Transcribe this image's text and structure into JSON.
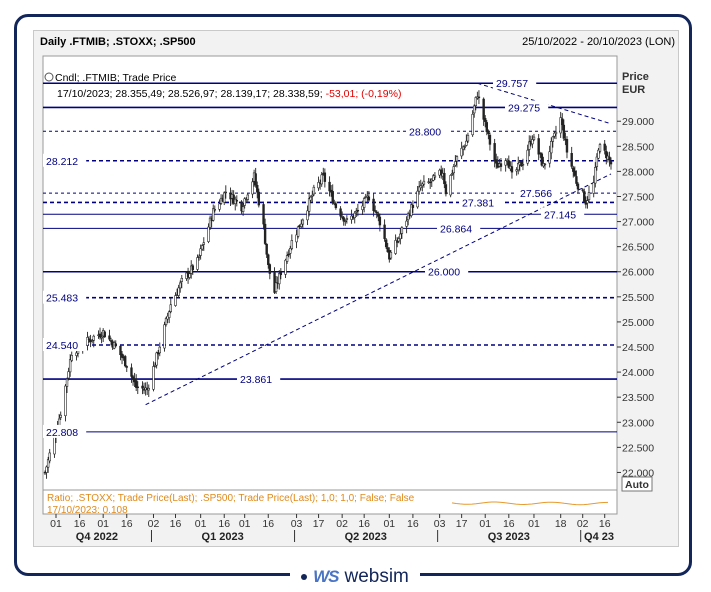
{
  "header": {
    "title": "Daily .FTMIB; .STOXX; .SP500",
    "range": "25/10/2022 - 20/10/2023 (LON)"
  },
  "legend": {
    "line1": "Cndl; .FTMIB; Trade Price",
    "line2_prefix": "17/10/2023; 28.355,49; 28.526,97; 28.139,17; 28.338,59; ",
    "line2_change": "-53,01; (-0,19%)"
  },
  "axis": {
    "price_label": "Price",
    "currency_label": "EUR",
    "auto_label": "Auto"
  },
  "ratio_panel": {
    "label": "Ratio; .STOXX; Trade Price(Last); .SP500; Trade Price(Last);  1,0; 1,0; False; False",
    "value_label": "17/10/2023; 0,108"
  },
  "branding": {
    "mark": "WS",
    "name": "websim"
  },
  "colors": {
    "accent": "#000080",
    "dark_navy": "#13265a",
    "down": "#ff0000",
    "ratio": "#e69a2e",
    "candle": "#222222"
  },
  "chart_data": {
    "type": "candlestick",
    "ylim": [
      21650,
      30300
    ],
    "y_ticks": [
      22000,
      22500,
      23000,
      23500,
      24000,
      24500,
      25000,
      25500,
      26000,
      26500,
      27000,
      27500,
      28000,
      28500,
      29000
    ],
    "y_tick_labels": [
      "22.000",
      "22.500",
      "23.000",
      "23.500",
      "24.000",
      "24.500",
      "25.000",
      "25.500",
      "26.000",
      "26.500",
      "27.000",
      "27.500",
      "28.000",
      "28.500",
      "29.000"
    ],
    "x_day_ticks": [
      {
        "date": "2022-11-01",
        "label": "01"
      },
      {
        "date": "2022-11-16",
        "label": "16"
      },
      {
        "date": "2022-12-01",
        "label": "01"
      },
      {
        "date": "2022-12-16",
        "label": "16"
      },
      {
        "date": "2023-01-02",
        "label": "02"
      },
      {
        "date": "2023-01-16",
        "label": "16"
      },
      {
        "date": "2023-02-01",
        "label": "01"
      },
      {
        "date": "2023-02-16",
        "label": "16"
      },
      {
        "date": "2023-03-01",
        "label": "01"
      },
      {
        "date": "2023-03-16",
        "label": "16"
      },
      {
        "date": "2023-04-03",
        "label": "03"
      },
      {
        "date": "2023-04-17",
        "label": "17"
      },
      {
        "date": "2023-05-02",
        "label": "02"
      },
      {
        "date": "2023-05-16",
        "label": "16"
      },
      {
        "date": "2023-06-01",
        "label": "01"
      },
      {
        "date": "2023-06-16",
        "label": "16"
      },
      {
        "date": "2023-07-03",
        "label": "03"
      },
      {
        "date": "2023-07-17",
        "label": "17"
      },
      {
        "date": "2023-08-01",
        "label": "01"
      },
      {
        "date": "2023-08-16",
        "label": "16"
      },
      {
        "date": "2023-09-01",
        "label": "01"
      },
      {
        "date": "2023-09-18",
        "label": "18"
      },
      {
        "date": "2023-10-02",
        "label": "02"
      },
      {
        "date": "2023-10-16",
        "label": "16"
      }
    ],
    "x_quarters": [
      {
        "label": "Q4 2022",
        "start": "2022-10-25",
        "end": "2022-12-30"
      },
      {
        "label": "Q1 2023",
        "start": "2023-01-02",
        "end": "2023-03-31"
      },
      {
        "label": "Q2 2023",
        "start": "2023-04-03",
        "end": "2023-06-30"
      },
      {
        "label": "Q3 2023",
        "start": "2023-07-03",
        "end": "2023-09-29"
      },
      {
        "label": "Q4 23",
        "start": "2023-10-02",
        "end": "2023-10-20"
      }
    ],
    "horizontal_levels": [
      {
        "value": 29757,
        "label": "29.757",
        "style": "solid",
        "label_pos": "mid-right"
      },
      {
        "value": 29275,
        "label": "29.275",
        "style": "solid",
        "label_pos": "mid-right"
      },
      {
        "value": 28800,
        "label": "28.800",
        "style": "dashed-thin",
        "label_pos": "mid-right"
      },
      {
        "value": 28212,
        "label": "28.212",
        "style": "dashed",
        "label_pos": "left"
      },
      {
        "value": 27566,
        "label": "27.566",
        "style": "dashed-thin",
        "label_pos": "mid-right"
      },
      {
        "value": 27381,
        "label": "27.381",
        "style": "dashed",
        "label_pos": "middle"
      },
      {
        "value": 27145,
        "label": "27.145",
        "style": "solid-thin",
        "label_pos": "right"
      },
      {
        "value": 26864,
        "label": "26.864",
        "style": "solid-thin",
        "label_pos": "middle"
      },
      {
        "value": 26000,
        "label": "26.000",
        "style": "solid",
        "label_pos": "middle"
      },
      {
        "value": 25483,
        "label": "25.483",
        "style": "dashed",
        "label_pos": "left"
      },
      {
        "value": 24540,
        "label": "24.540",
        "style": "dashed",
        "label_pos": "left"
      },
      {
        "value": 23861,
        "label": "23.861",
        "style": "solid",
        "label_pos": "left-mid"
      },
      {
        "value": 22808,
        "label": "22.808",
        "style": "solid-thin",
        "label_pos": "left"
      }
    ],
    "trendlines": [
      {
        "from": {
          "date": "2022-12-28",
          "value": 23350
        },
        "to": {
          "date": "2023-10-20",
          "value": 27950
        },
        "style": "dashed"
      },
      {
        "from": {
          "date": "2023-07-27",
          "value": 29757
        },
        "to": {
          "date": "2023-10-20",
          "value": 28950
        },
        "style": "dashed"
      }
    ],
    "anchors": [
      {
        "date": "2022-10-25",
        "close": 22000,
        "lo": 21800,
        "hi": 22150
      },
      {
        "date": "2022-11-04",
        "close": 23200,
        "lo": 22600,
        "hi": 23400
      },
      {
        "date": "2022-11-11",
        "close": 24400,
        "lo": 24000,
        "hi": 24600
      },
      {
        "date": "2022-11-25",
        "close": 24700,
        "lo": 24400,
        "hi": 24800
      },
      {
        "date": "2022-12-01",
        "close": 24800,
        "lo": 24500,
        "hi": 24950
      },
      {
        "date": "2022-12-09",
        "close": 24500,
        "lo": 24300,
        "hi": 24700
      },
      {
        "date": "2022-12-16",
        "close": 24150,
        "lo": 23800,
        "hi": 24400
      },
      {
        "date": "2022-12-22",
        "close": 23700,
        "lo": 23500,
        "hi": 23900
      },
      {
        "date": "2022-12-29",
        "close": 23650,
        "lo": 23400,
        "hi": 23800
      },
      {
        "date": "2023-01-04",
        "close": 24300,
        "lo": 24000,
        "hi": 24450
      },
      {
        "date": "2023-01-13",
        "close": 25350,
        "lo": 25100,
        "hi": 25500
      },
      {
        "date": "2023-01-20",
        "close": 25800,
        "lo": 25600,
        "hi": 26000
      },
      {
        "date": "2023-01-30",
        "close": 26200,
        "lo": 25900,
        "hi": 26400
      },
      {
        "date": "2023-02-09",
        "close": 27200,
        "lo": 27000,
        "hi": 27350
      },
      {
        "date": "2023-02-17",
        "close": 27600,
        "lo": 27300,
        "hi": 27800
      },
      {
        "date": "2023-02-27",
        "close": 27300,
        "lo": 27000,
        "hi": 27500
      },
      {
        "date": "2023-03-07",
        "close": 27900,
        "lo": 27700,
        "hi": 28050
      },
      {
        "date": "2023-03-13",
        "close": 26900,
        "lo": 26600,
        "hi": 27100
      },
      {
        "date": "2023-03-16",
        "close": 26100,
        "lo": 25700,
        "hi": 26300
      },
      {
        "date": "2023-03-20",
        "close": 25600,
        "lo": 24700,
        "hi": 26000
      },
      {
        "date": "2023-03-24",
        "close": 26000,
        "lo": 25700,
        "hi": 26200
      },
      {
        "date": "2023-03-31",
        "close": 26600,
        "lo": 26300,
        "hi": 26800
      },
      {
        "date": "2023-04-06",
        "close": 27000,
        "lo": 26800,
        "hi": 27200
      },
      {
        "date": "2023-04-14",
        "close": 27600,
        "lo": 27300,
        "hi": 27800
      },
      {
        "date": "2023-04-20",
        "close": 27900,
        "lo": 27600,
        "hi": 28100
      },
      {
        "date": "2023-04-28",
        "close": 27300,
        "lo": 27000,
        "hi": 27500
      },
      {
        "date": "2023-05-05",
        "close": 27000,
        "lo": 26800,
        "hi": 27200
      },
      {
        "date": "2023-05-12",
        "close": 27200,
        "lo": 27000,
        "hi": 27400
      },
      {
        "date": "2023-05-19",
        "close": 27500,
        "lo": 27300,
        "hi": 27650
      },
      {
        "date": "2023-05-26",
        "close": 27000,
        "lo": 26800,
        "hi": 27200
      },
      {
        "date": "2023-06-01",
        "close": 26300,
        "lo": 26000,
        "hi": 26500
      },
      {
        "date": "2023-06-06",
        "close": 26600,
        "lo": 26300,
        "hi": 26800
      },
      {
        "date": "2023-06-14",
        "close": 27200,
        "lo": 27000,
        "hi": 27400
      },
      {
        "date": "2023-06-21",
        "close": 27700,
        "lo": 27500,
        "hi": 27900
      },
      {
        "date": "2023-06-28",
        "close": 27800,
        "lo": 27600,
        "hi": 28000
      },
      {
        "date": "2023-07-05",
        "close": 28000,
        "lo": 27700,
        "hi": 28150
      },
      {
        "date": "2023-07-07",
        "close": 27600,
        "lo": 27400,
        "hi": 27800
      },
      {
        "date": "2023-07-13",
        "close": 28200,
        "lo": 28000,
        "hi": 28400
      },
      {
        "date": "2023-07-20",
        "close": 28600,
        "lo": 28400,
        "hi": 28750
      },
      {
        "date": "2023-07-27",
        "close": 29550,
        "lo": 29200,
        "hi": 29757
      },
      {
        "date": "2023-08-02",
        "close": 28800,
        "lo": 28500,
        "hi": 29000
      },
      {
        "date": "2023-08-08",
        "close": 28100,
        "lo": 27800,
        "hi": 28300
      },
      {
        "date": "2023-08-15",
        "close": 28300,
        "lo": 28000,
        "hi": 28500
      },
      {
        "date": "2023-08-18",
        "close": 27900,
        "lo": 27700,
        "hi": 28100
      },
      {
        "date": "2023-08-25",
        "close": 28200,
        "lo": 28000,
        "hi": 28400
      },
      {
        "date": "2023-08-31",
        "close": 28700,
        "lo": 28500,
        "hi": 28900
      },
      {
        "date": "2023-09-07",
        "close": 28100,
        "lo": 27900,
        "hi": 28300
      },
      {
        "date": "2023-09-13",
        "close": 28600,
        "lo": 28400,
        "hi": 28800
      },
      {
        "date": "2023-09-18",
        "close": 29050,
        "lo": 28800,
        "hi": 29275
      },
      {
        "date": "2023-09-22",
        "close": 28400,
        "lo": 28200,
        "hi": 28600
      },
      {
        "date": "2023-09-28",
        "close": 27800,
        "lo": 27500,
        "hi": 28000
      },
      {
        "date": "2023-10-04",
        "close": 27400,
        "lo": 27145,
        "hi": 27600
      },
      {
        "date": "2023-10-09",
        "close": 27750,
        "lo": 27500,
        "hi": 27900
      },
      {
        "date": "2023-10-12",
        "close": 28500,
        "lo": 28300,
        "hi": 28650
      },
      {
        "date": "2023-10-17",
        "close": 28338.59,
        "lo": 28139.17,
        "hi": 28526.97
      },
      {
        "date": "2023-10-20",
        "close": 28150,
        "lo": 27950,
        "hi": 28350
      }
    ]
  }
}
